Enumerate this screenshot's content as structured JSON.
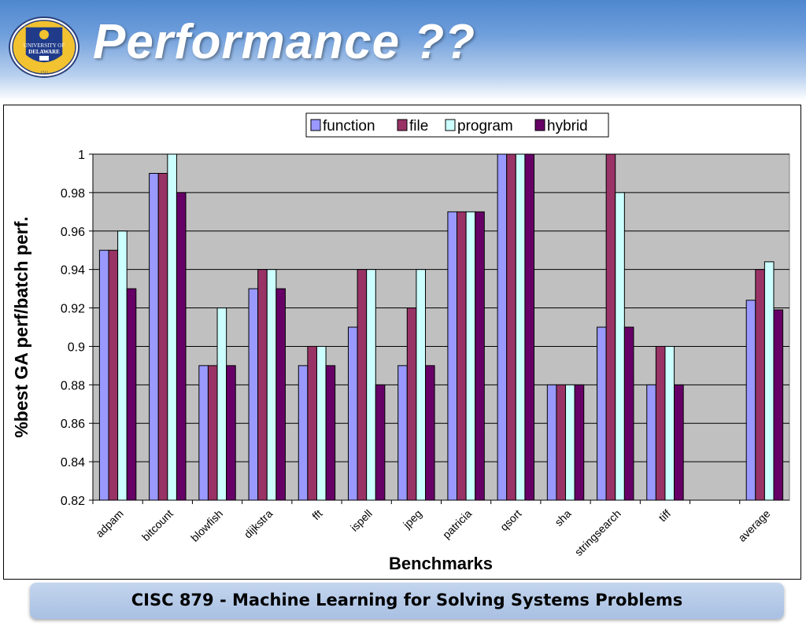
{
  "slide": {
    "title": "Performance ??",
    "footer": "CISC 879 - Machine Learning for Solving Systems Problems"
  },
  "logo": {
    "line1": "UNIVERSITY OF",
    "line2": "DELAWARE",
    "year": "1743"
  },
  "colors": {
    "header_top": "#4f87cf",
    "plot_bg": "#c0c0c0",
    "function": "#9999ff",
    "file": "#993366",
    "program": "#ccffff",
    "hybrid": "#660066"
  },
  "chart_data": {
    "type": "bar",
    "title": "",
    "xlabel": "Benchmarks",
    "ylabel": "%best GA perf/batch perf.",
    "ylim": [
      0.82,
      1.0
    ],
    "yticks": [
      "0.82",
      "0.84",
      "0.86",
      "0.88",
      "0.9",
      "0.92",
      "0.94",
      "0.96",
      "0.98",
      "1"
    ],
    "grid": true,
    "legend_position": "top",
    "categories": [
      "adpam",
      "bitcount",
      "blowfish",
      "dijkstra",
      "fft",
      "ispell",
      "jpeg",
      "patricia",
      "qsort",
      "sha",
      "stringsearch",
      "tiff",
      "",
      "average"
    ],
    "series": [
      {
        "name": "function",
        "color": "#9999ff",
        "values": [
          0.95,
          0.99,
          0.89,
          0.93,
          0.89,
          0.91,
          0.89,
          0.97,
          1.0,
          0.88,
          0.91,
          0.88,
          null,
          0.924
        ]
      },
      {
        "name": "file",
        "color": "#993366",
        "values": [
          0.95,
          0.99,
          0.89,
          0.94,
          0.9,
          0.94,
          0.92,
          0.97,
          1.0,
          0.88,
          1.0,
          0.9,
          null,
          0.94
        ]
      },
      {
        "name": "program",
        "color": "#ccffff",
        "values": [
          0.96,
          1.0,
          0.92,
          0.94,
          0.9,
          0.94,
          0.94,
          0.97,
          1.0,
          0.88,
          0.98,
          0.9,
          null,
          0.944
        ]
      },
      {
        "name": "hybrid",
        "color": "#660066",
        "values": [
          0.93,
          0.98,
          0.89,
          0.93,
          0.89,
          0.88,
          0.89,
          0.97,
          1.0,
          0.88,
          0.91,
          0.88,
          null,
          0.919
        ]
      }
    ]
  }
}
